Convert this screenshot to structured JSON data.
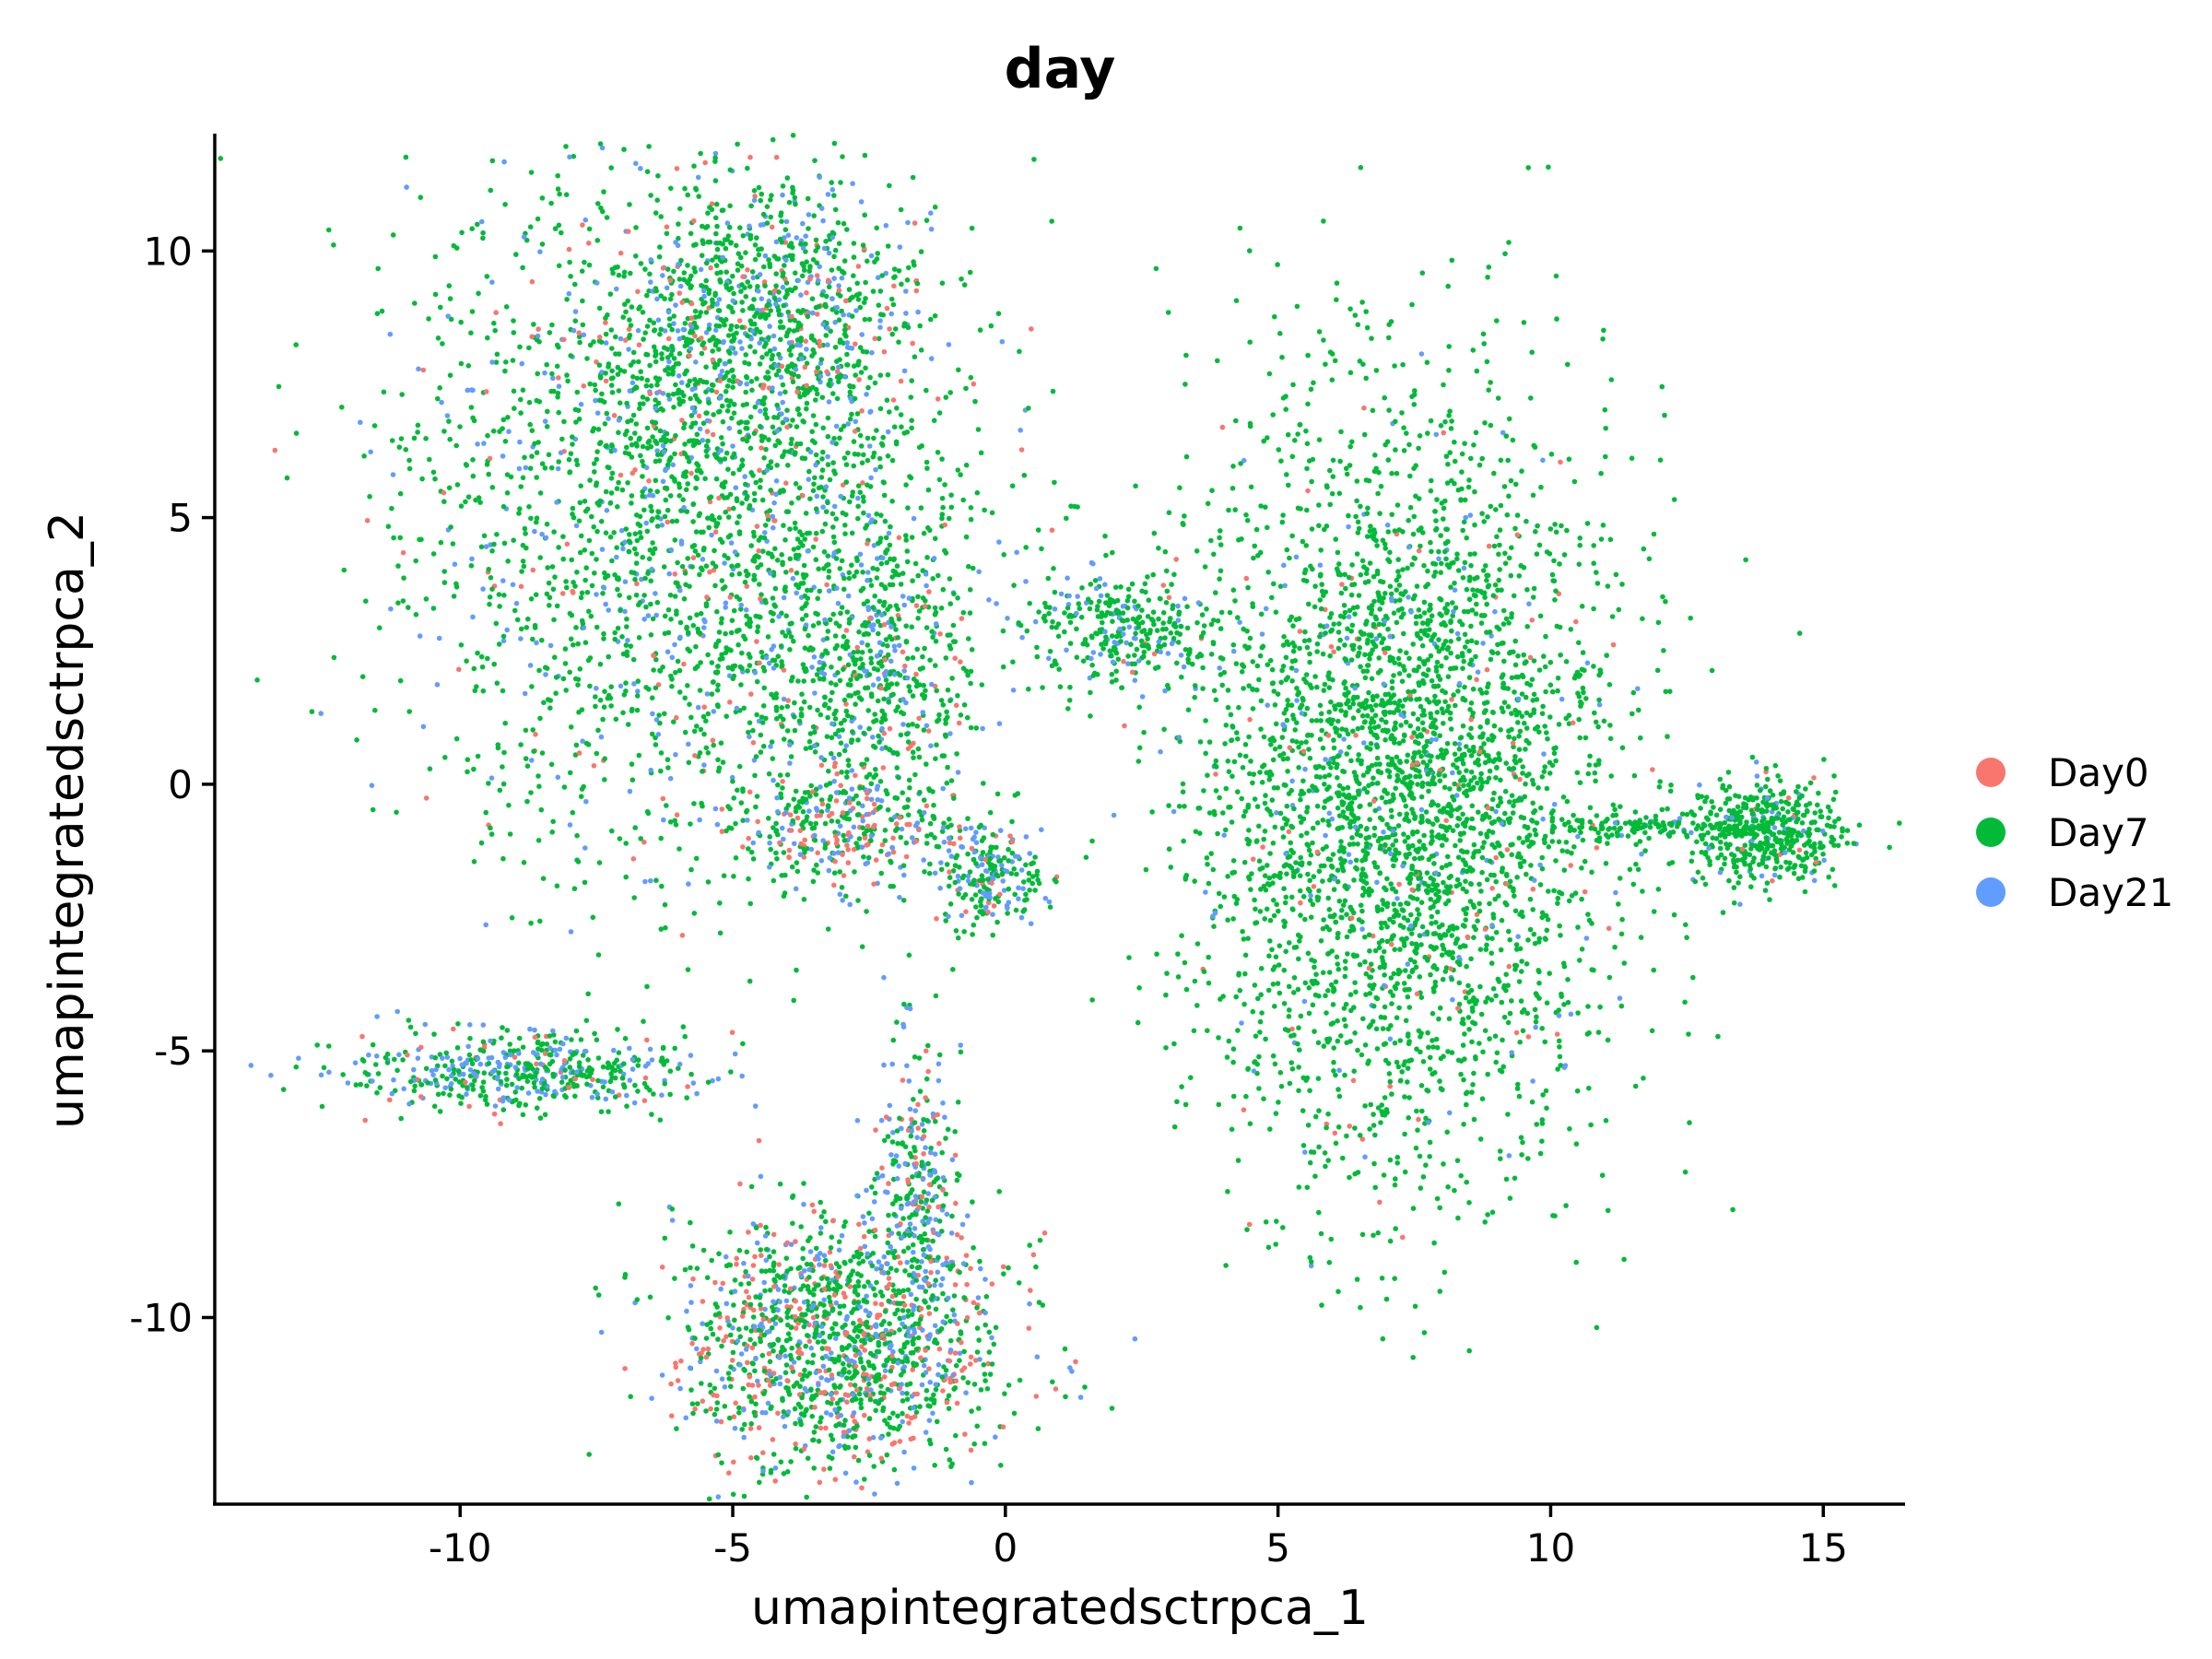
{
  "chart_data": {
    "type": "scatter",
    "title": "day",
    "xlabel": "umapintegratedsctrpca_1",
    "ylabel": "umapintegratedsctrpca_2",
    "xlim": [
      -14.5,
      16.5
    ],
    "ylim": [
      -13.5,
      12.2
    ],
    "xticks": [
      -10,
      -5,
      0,
      5,
      10,
      15
    ],
    "yticks": [
      -10,
      -5,
      0,
      5,
      10
    ],
    "xtick_labels": [
      "-10",
      "-5",
      "0",
      "5",
      "10",
      "15"
    ],
    "ytick_labels": [
      "-10",
      "-5",
      "0",
      "5",
      "10"
    ],
    "grid": false,
    "legend_position": "right",
    "series": [
      {
        "name": "Day0",
        "color": "#F8766D"
      },
      {
        "name": "Day7",
        "color": "#00BA38"
      },
      {
        "name": "Day21",
        "color": "#619CFF"
      }
    ],
    "clusters": [
      {
        "id": "upper-left",
        "cx": -5.6,
        "cy": 5.0,
        "sx": 2.6,
        "sy": 3.2,
        "n": 2600,
        "mix": [
          0.05,
          0.8,
          0.15
        ]
      },
      {
        "id": "upper-left-top",
        "cx": -4.5,
        "cy": 8.8,
        "sx": 1.3,
        "sy": 1.2,
        "n": 700,
        "mix": [
          0.12,
          0.7,
          0.18
        ]
      },
      {
        "id": "upper-left-arm",
        "cx": -2.3,
        "cy": 1.8,
        "sx": 0.9,
        "sy": 1.5,
        "n": 500,
        "mix": [
          0.06,
          0.74,
          0.2
        ]
      },
      {
        "id": "upper-left-lower",
        "cx": -3.2,
        "cy": -0.8,
        "sx": 1.0,
        "sy": 0.5,
        "n": 260,
        "mix": [
          0.35,
          0.45,
          0.2
        ]
      },
      {
        "id": "tail-small",
        "cx": -0.3,
        "cy": -1.7,
        "sx": 0.5,
        "sy": 0.5,
        "n": 220,
        "mix": [
          0.08,
          0.55,
          0.37
        ]
      },
      {
        "id": "big-right",
        "cx": 7.3,
        "cy": 0.0,
        "sx": 1.9,
        "sy": 3.5,
        "n": 3500,
        "mix": [
          0.03,
          0.92,
          0.05
        ]
      },
      {
        "id": "right-tail",
        "cx": 13.9,
        "cy": -0.9,
        "sx": 0.7,
        "sy": 0.5,
        "n": 500,
        "mix": [
          0.02,
          0.9,
          0.08
        ]
      },
      {
        "id": "right-bridge",
        "cx": 11.5,
        "cy": -0.8,
        "sx": 1.0,
        "sy": 0.12,
        "n": 120,
        "mix": [
          0.0,
          0.9,
          0.1
        ]
      },
      {
        "id": "left-arm-top",
        "cx": 2.2,
        "cy": 3.0,
        "sx": 0.9,
        "sy": 0.5,
        "n": 300,
        "mix": [
          0.02,
          0.78,
          0.2
        ]
      },
      {
        "id": "mid-left",
        "cx": -9.0,
        "cy": -5.4,
        "sx": 1.6,
        "sy": 0.35,
        "n": 500,
        "mix": [
          0.08,
          0.62,
          0.3
        ]
      },
      {
        "id": "bottom",
        "cx": -3.0,
        "cy": -10.5,
        "sx": 1.5,
        "sy": 1.2,
        "n": 1400,
        "mix": [
          0.22,
          0.58,
          0.2
        ]
      },
      {
        "id": "bottom-spike",
        "cx": -1.6,
        "cy": -7.5,
        "sx": 0.4,
        "sy": 1.3,
        "n": 300,
        "mix": [
          0.15,
          0.45,
          0.4
        ]
      }
    ]
  }
}
